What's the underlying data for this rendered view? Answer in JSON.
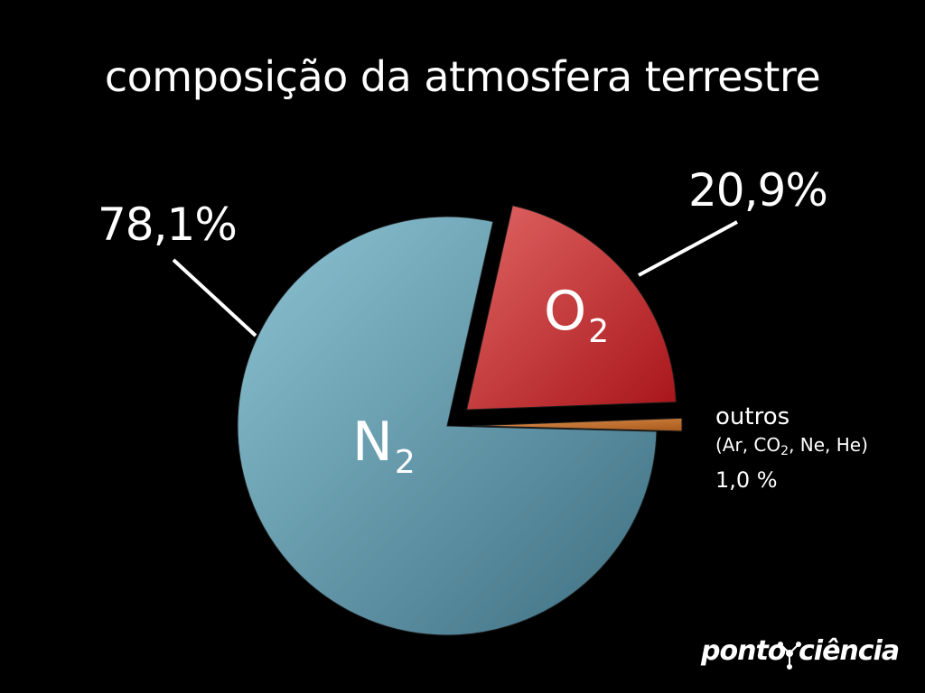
{
  "chart_data": {
    "type": "pie",
    "title": "composição da atmosfera terrestre",
    "slices": [
      {
        "id": "n2",
        "formula": "N",
        "subscript": "2",
        "label": "78,1%",
        "value": 78.1,
        "color": "#6fa6b8",
        "exploded": false
      },
      {
        "id": "o2",
        "formula": "O",
        "subscript": "2",
        "label": "20,9%",
        "value": 20.9,
        "color": "#c8302f",
        "exploded": true
      },
      {
        "id": "outros",
        "label": "outros",
        "detail_prefix": "(Ar, CO",
        "detail_subscript": "2",
        "detail_suffix": ", Ne, He)",
        "value_label": "1,0 %",
        "value": 1.0,
        "color": "#c7732f",
        "exploded": true
      }
    ]
  },
  "logo": {
    "left": "ponto",
    "right": "ciência"
  }
}
